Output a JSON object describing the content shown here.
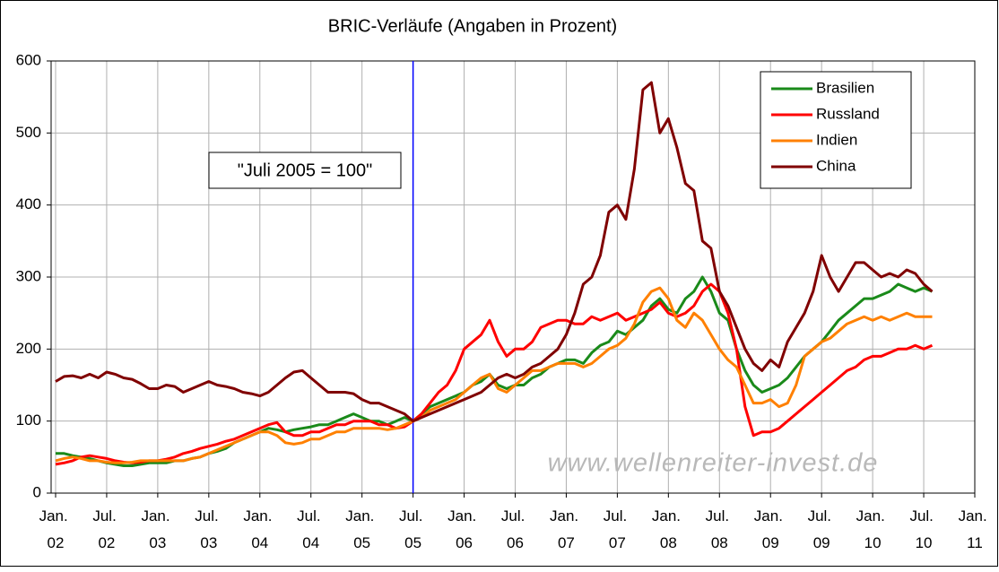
{
  "chart_data": {
    "type": "line",
    "title": "BRIC-Verläufe (Angaben in Prozent)",
    "annotation": "\"Juli 2005 = 100\"",
    "watermark": "www.wellenreiter-invest.de",
    "reference_x": "2005-07",
    "reference_color": "#0000ff",
    "x": [
      "2002-01",
      "2002-02",
      "2002-03",
      "2002-04",
      "2002-05",
      "2002-06",
      "2002-07",
      "2002-08",
      "2002-09",
      "2002-10",
      "2002-11",
      "2002-12",
      "2003-01",
      "2003-02",
      "2003-03",
      "2003-04",
      "2003-05",
      "2003-06",
      "2003-07",
      "2003-08",
      "2003-09",
      "2003-10",
      "2003-11",
      "2003-12",
      "2004-01",
      "2004-02",
      "2004-03",
      "2004-04",
      "2004-05",
      "2004-06",
      "2004-07",
      "2004-08",
      "2004-09",
      "2004-10",
      "2004-11",
      "2004-12",
      "2005-01",
      "2005-02",
      "2005-03",
      "2005-04",
      "2005-05",
      "2005-06",
      "2005-07",
      "2005-08",
      "2005-09",
      "2005-10",
      "2005-11",
      "2005-12",
      "2006-01",
      "2006-02",
      "2006-03",
      "2006-04",
      "2006-05",
      "2006-06",
      "2006-07",
      "2006-08",
      "2006-09",
      "2006-10",
      "2006-11",
      "2006-12",
      "2007-01",
      "2007-02",
      "2007-03",
      "2007-04",
      "2007-05",
      "2007-06",
      "2007-07",
      "2007-08",
      "2007-09",
      "2007-10",
      "2007-11",
      "2007-12",
      "2008-01",
      "2008-02",
      "2008-03",
      "2008-04",
      "2008-05",
      "2008-06",
      "2008-07",
      "2008-08",
      "2008-09",
      "2008-10",
      "2008-11",
      "2008-12",
      "2009-01",
      "2009-02",
      "2009-03",
      "2009-04",
      "2009-05",
      "2009-06",
      "2009-07",
      "2009-08",
      "2009-09",
      "2009-10",
      "2009-11",
      "2009-12",
      "2010-01",
      "2010-02",
      "2010-03",
      "2010-04",
      "2010-05",
      "2010-06",
      "2010-07",
      "2010-08"
    ],
    "series": [
      {
        "name": "Brasilien",
        "color": "#1a8a1a",
        "values": [
          55,
          55,
          52,
          50,
          48,
          45,
          42,
          40,
          38,
          38,
          40,
          42,
          42,
          42,
          45,
          45,
          48,
          50,
          55,
          58,
          62,
          70,
          75,
          80,
          85,
          90,
          88,
          85,
          88,
          90,
          92,
          95,
          95,
          100,
          105,
          110,
          105,
          100,
          100,
          95,
          100,
          105,
          100,
          110,
          120,
          125,
          130,
          135,
          140,
          150,
          155,
          165,
          150,
          145,
          150,
          150,
          160,
          165,
          175,
          180,
          185,
          185,
          180,
          195,
          205,
          210,
          225,
          220,
          230,
          240,
          260,
          270,
          255,
          250,
          270,
          280,
          300,
          280,
          250,
          240,
          200,
          170,
          150,
          140,
          145,
          150,
          160,
          175,
          190,
          200,
          210,
          225,
          240,
          250,
          260,
          270,
          270,
          275,
          280,
          290,
          285,
          280,
          285,
          280
        ]
      },
      {
        "name": "Russland",
        "color": "#ff0000",
        "values": [
          40,
          42,
          45,
          50,
          52,
          50,
          48,
          45,
          43,
          42,
          43,
          45,
          45,
          47,
          50,
          55,
          58,
          62,
          65,
          68,
          72,
          75,
          80,
          85,
          90,
          95,
          98,
          85,
          80,
          80,
          85,
          85,
          90,
          95,
          95,
          100,
          100,
          100,
          95,
          95,
          90,
          92,
          100,
          110,
          125,
          140,
          150,
          170,
          200,
          210,
          220,
          240,
          210,
          190,
          200,
          200,
          210,
          230,
          235,
          240,
          240,
          235,
          235,
          245,
          240,
          245,
          250,
          240,
          245,
          250,
          255,
          265,
          250,
          245,
          250,
          260,
          280,
          290,
          280,
          250,
          200,
          120,
          80,
          85,
          85,
          90,
          100,
          110,
          120,
          130,
          140,
          150,
          160,
          170,
          175,
          185,
          190,
          190,
          195,
          200,
          200,
          205,
          200,
          205
        ]
      },
      {
        "name": "Indien",
        "color": "#ff8000",
        "values": [
          45,
          48,
          50,
          48,
          45,
          45,
          43,
          42,
          42,
          43,
          45,
          45,
          45,
          45,
          45,
          45,
          48,
          50,
          55,
          60,
          65,
          70,
          75,
          80,
          85,
          85,
          80,
          70,
          68,
          70,
          75,
          75,
          80,
          85,
          85,
          90,
          90,
          90,
          90,
          88,
          90,
          95,
          100,
          105,
          115,
          120,
          125,
          130,
          140,
          150,
          160,
          165,
          145,
          140,
          150,
          160,
          170,
          170,
          175,
          180,
          180,
          180,
          175,
          180,
          190,
          200,
          205,
          215,
          235,
          265,
          280,
          285,
          270,
          240,
          230,
          250,
          240,
          220,
          200,
          185,
          175,
          150,
          125,
          125,
          130,
          120,
          125,
          150,
          190,
          200,
          210,
          215,
          225,
          235,
          240,
          245,
          240,
          245,
          240,
          245,
          250,
          245,
          245,
          245
        ]
      },
      {
        "name": "China",
        "color": "#800000",
        "values": [
          155,
          162,
          163,
          160,
          165,
          160,
          168,
          165,
          160,
          158,
          152,
          145,
          145,
          150,
          148,
          140,
          145,
          150,
          155,
          150,
          148,
          145,
          140,
          138,
          135,
          140,
          150,
          160,
          168,
          170,
          160,
          150,
          140,
          140,
          140,
          138,
          130,
          125,
          125,
          120,
          115,
          110,
          100,
          105,
          110,
          115,
          120,
          125,
          130,
          135,
          140,
          150,
          160,
          165,
          160,
          165,
          175,
          180,
          190,
          200,
          220,
          250,
          290,
          300,
          330,
          390,
          400,
          380,
          450,
          560,
          570,
          500,
          520,
          480,
          430,
          420,
          350,
          340,
          280,
          260,
          230,
          200,
          180,
          170,
          185,
          175,
          210,
          230,
          250,
          280,
          330,
          300,
          280,
          300,
          320,
          320,
          310,
          300,
          305,
          300,
          310,
          305,
          290,
          280
        ]
      }
    ],
    "xlim": [
      "2002-01",
      "2011-01"
    ],
    "xticks": [
      {
        "value": "2002-01",
        "label": "Jan. 02"
      },
      {
        "value": "2002-07",
        "label": "Jul. 02"
      },
      {
        "value": "2003-01",
        "label": "Jan. 03"
      },
      {
        "value": "2003-07",
        "label": "Jul. 03"
      },
      {
        "value": "2004-01",
        "label": "Jan. 04"
      },
      {
        "value": "2004-07",
        "label": "Jul. 04"
      },
      {
        "value": "2005-01",
        "label": "Jan. 05"
      },
      {
        "value": "2005-07",
        "label": "Jul. 05"
      },
      {
        "value": "2006-01",
        "label": "Jan. 06"
      },
      {
        "value": "2006-07",
        "label": "Jul. 06"
      },
      {
        "value": "2007-01",
        "label": "Jan. 07"
      },
      {
        "value": "2007-07",
        "label": "Jul. 07"
      },
      {
        "value": "2008-01",
        "label": "Jan. 08"
      },
      {
        "value": "2008-07",
        "label": "Jul. 08"
      },
      {
        "value": "2009-01",
        "label": "Jan. 09"
      },
      {
        "value": "2009-07",
        "label": "Jul. 09"
      },
      {
        "value": "2010-01",
        "label": "Jan. 10"
      },
      {
        "value": "2010-07",
        "label": "Jul. 10"
      },
      {
        "value": "2011-01",
        "label": "Jan. 11"
      }
    ],
    "ylim": [
      0,
      600
    ],
    "yticks": [
      0,
      100,
      200,
      300,
      400,
      500,
      600
    ],
    "grid": true,
    "legend": "top-right"
  }
}
